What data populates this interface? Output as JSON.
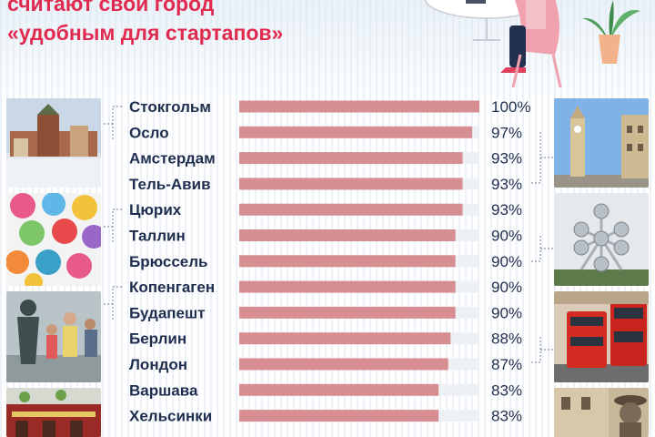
{
  "title": {
    "line1": "считают свой город",
    "line2": "«удобным для стартапов»"
  },
  "colors": {
    "title": "#e02a4f",
    "bar": "#d68e92",
    "track": "#eef1f4",
    "label": "#1f2d4e"
  },
  "chart_data": {
    "type": "bar",
    "orientation": "horizontal",
    "categories": [
      "Стокгольм",
      "Осло",
      "Амстердам",
      "Тель-Авив",
      "Цюрих",
      "Таллин",
      "Брюссель",
      "Копенгаген",
      "Будапешт",
      "Берлин",
      "Лондон",
      "Варшава",
      "Хельсинки"
    ],
    "values": [
      100,
      97,
      93,
      93,
      93,
      90,
      90,
      90,
      90,
      88,
      87,
      83,
      83
    ],
    "value_suffix": "%",
    "xlim": [
      0,
      100
    ]
  },
  "photos": {
    "left": [
      "stockholm-photo-icon",
      "umbrellas-photo-icon",
      "statue-crowd-photo-icon",
      "pub-photo-icon"
    ],
    "right": [
      "clock-tower-photo-icon",
      "atomium-photo-icon",
      "red-buses-photo-icon",
      "don-quixote-statue-photo-icon"
    ]
  }
}
